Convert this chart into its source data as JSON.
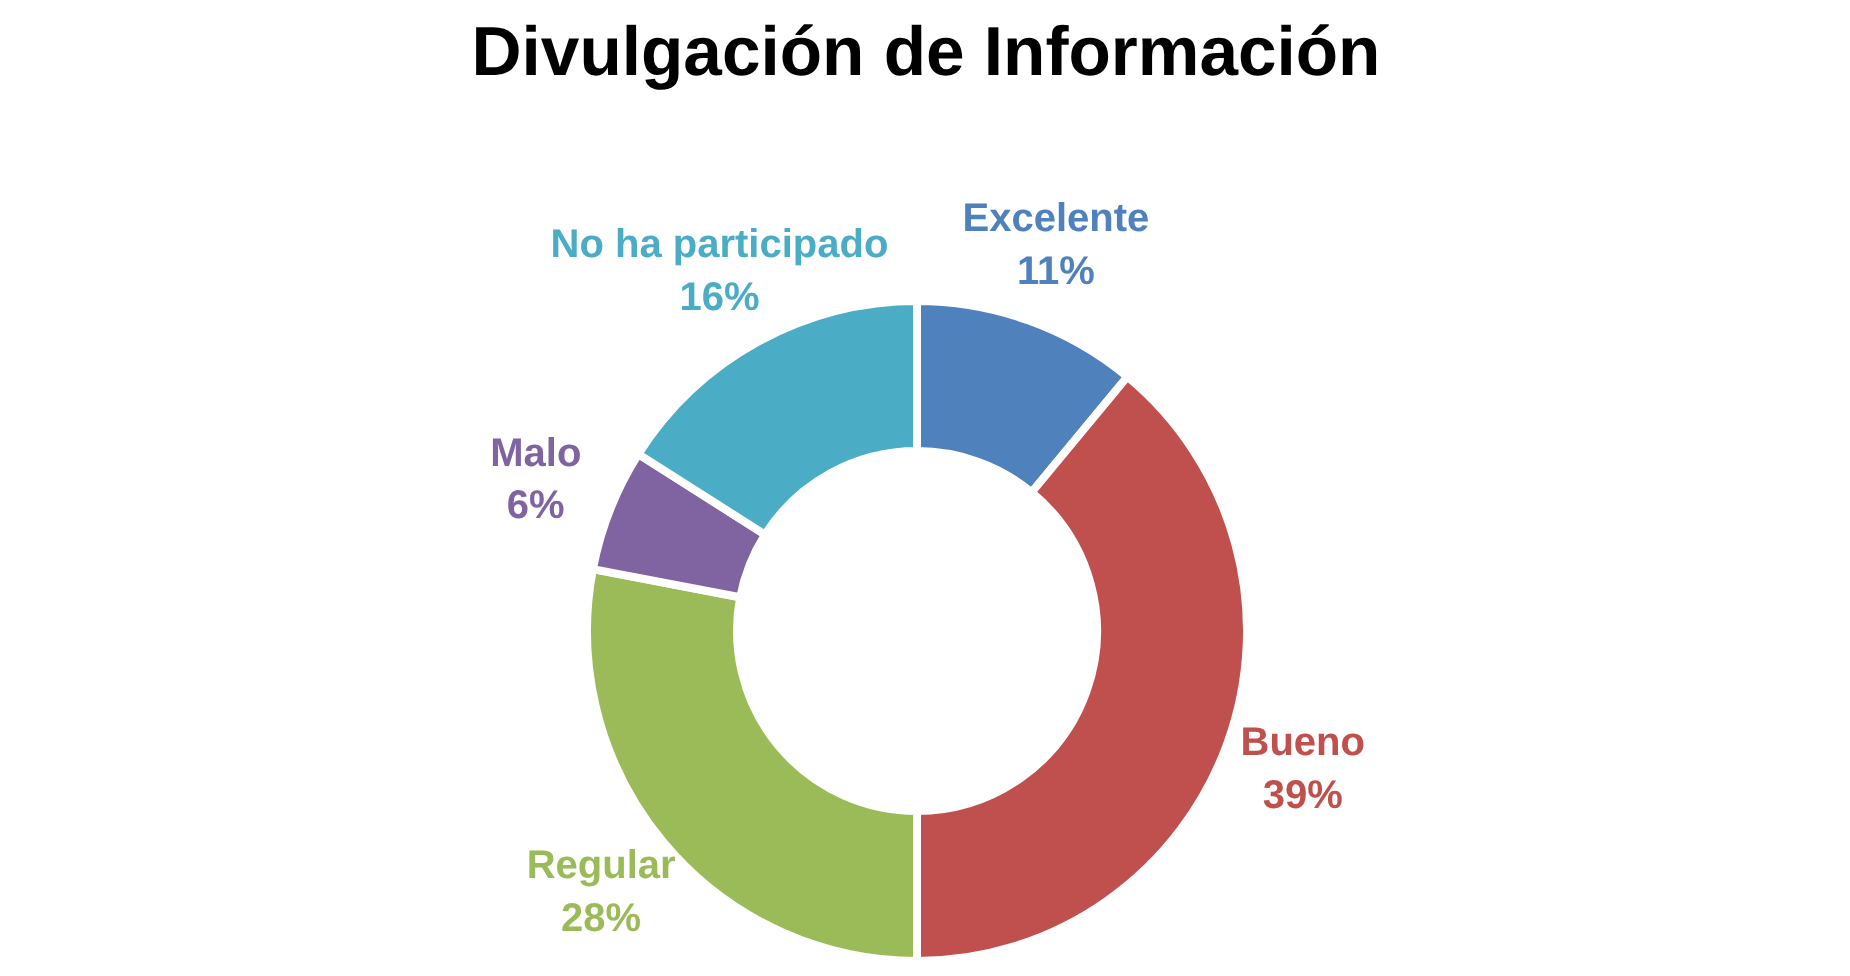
{
  "chart_data": {
    "type": "donut",
    "title": "Divulgación de Información",
    "categories": [
      "Excelente",
      "Bueno",
      "Regular",
      "Malo",
      "No ha participado"
    ],
    "values": [
      11,
      39,
      28,
      6,
      16
    ],
    "value_labels": [
      "11%",
      "39%",
      "28%",
      "6%",
      "16%"
    ],
    "colors": [
      "#4f81bd",
      "#c0504d",
      "#9bbb59",
      "#8064a2",
      "#4bacc6"
    ]
  }
}
